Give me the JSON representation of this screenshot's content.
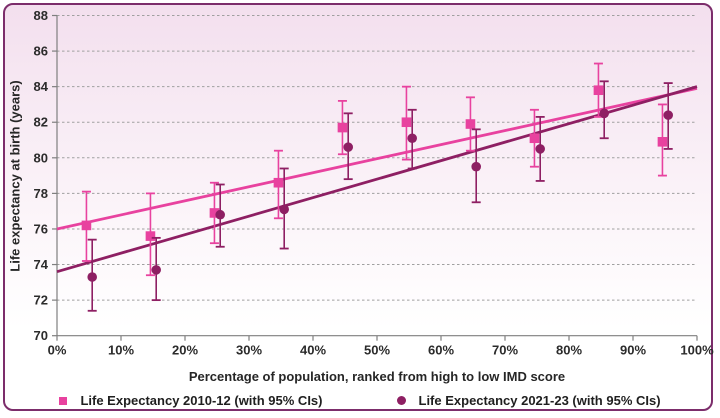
{
  "chart_data": {
    "type": "scatter",
    "title": "",
    "xlabel": "Percentage of population, ranked from high to low IMD score",
    "ylabel": "Life expectancy at birth (years)",
    "xlim": [
      0,
      100
    ],
    "ylim": [
      70,
      88
    ],
    "grid": "horizontal-dashed",
    "legend_position": "bottom",
    "x_ticks": [
      {
        "label": "0%",
        "value": 0
      },
      {
        "label": "10%",
        "value": 10
      },
      {
        "label": "20%",
        "value": 20
      },
      {
        "label": "30%",
        "value": 30
      },
      {
        "label": "40%",
        "value": 40
      },
      {
        "label": "50%",
        "value": 50
      },
      {
        "label": "60%",
        "value": 60
      },
      {
        "label": "70%",
        "value": 70
      },
      {
        "label": "80%",
        "value": 80
      },
      {
        "label": "90%",
        "value": 90
      },
      {
        "label": "100%",
        "value": 100
      }
    ],
    "y_ticks": [
      {
        "label": "70",
        "value": 70
      },
      {
        "label": "72",
        "value": 72
      },
      {
        "label": "74",
        "value": 74
      },
      {
        "label": "76",
        "value": 76
      },
      {
        "label": "78",
        "value": 78
      },
      {
        "label": "80",
        "value": 80
      },
      {
        "label": "82",
        "value": 82
      },
      {
        "label": "84",
        "value": 84
      },
      {
        "label": "86",
        "value": 86
      },
      {
        "label": "88",
        "value": 88
      }
    ],
    "series": [
      {
        "name": "Life Expectancy 2010-12 (with 95% CIs)",
        "marker": "square",
        "color": "#e8429f",
        "x": [
          4.6,
          14.6,
          24.6,
          34.6,
          44.6,
          54.6,
          64.6,
          74.6,
          84.6,
          94.6
        ],
        "y": [
          76.2,
          75.6,
          76.9,
          78.6,
          81.7,
          82.0,
          81.9,
          81.1,
          83.8,
          80.9
        ],
        "ci_low": [
          74.2,
          73.4,
          75.2,
          76.6,
          80.2,
          79.9,
          80.4,
          79.5,
          82.3,
          79.0
        ],
        "ci_high": [
          78.1,
          78.0,
          78.6,
          80.4,
          83.2,
          84.0,
          83.4,
          82.7,
          85.3,
          83.0
        ],
        "trend": {
          "x0": 0,
          "y0": 76.0,
          "x1": 100,
          "y1": 83.9
        }
      },
      {
        "name": "Life Expectancy 2021-23 (with 95% CIs)",
        "marker": "circle",
        "color": "#8e1f63",
        "x": [
          5.5,
          15.5,
          25.5,
          35.5,
          45.5,
          55.5,
          65.5,
          75.5,
          85.5,
          95.5
        ],
        "y": [
          73.3,
          73.7,
          76.8,
          77.1,
          80.6,
          81.1,
          79.5,
          80.5,
          82.5,
          82.4
        ],
        "ci_low": [
          71.4,
          72.0,
          75.0,
          74.9,
          78.8,
          79.4,
          77.5,
          78.7,
          81.1,
          80.5
        ],
        "ci_high": [
          75.4,
          75.5,
          78.5,
          79.4,
          82.5,
          82.7,
          81.6,
          82.3,
          84.3,
          84.2
        ],
        "trend": {
          "x0": 0,
          "y0": 73.6,
          "x1": 100,
          "y1": 84.0
        }
      }
    ]
  },
  "colors": {
    "panel_border": "#7c2d6b",
    "background_top": "#f3dfee",
    "background_bottom": "#ffffff",
    "gridline": "#a0a0a0",
    "axis_line": "#7f7f7f",
    "tick_text": "#2b2b2b",
    "series_2010": "#e8429f",
    "series_2021": "#8e1f63"
  }
}
